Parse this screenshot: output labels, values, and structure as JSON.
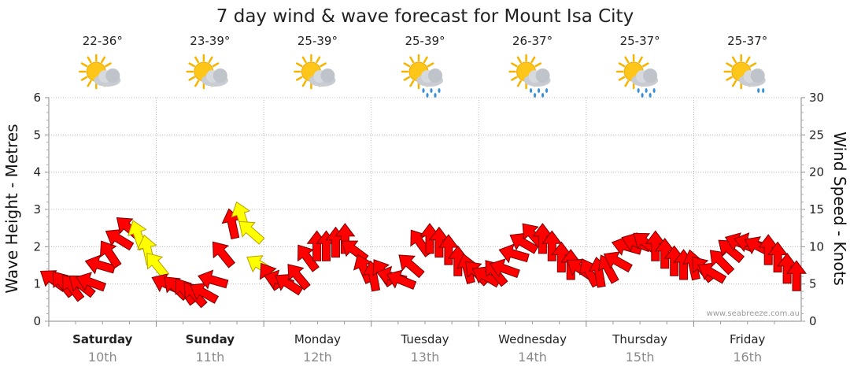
{
  "chart_data": {
    "type": "line",
    "title": "7 day wind & wave forecast for Mount Isa City",
    "ylabel_left": "Wave Height - Metres",
    "ylabel_right": "Wind Speed - Knots",
    "ylim_left": [
      0,
      6
    ],
    "ylim_right": [
      0,
      30
    ],
    "yticks_left": [
      "0",
      "1",
      "2",
      "3",
      "4",
      "5",
      "6"
    ],
    "yticks_right": [
      "0",
      "5",
      "10",
      "15",
      "20",
      "25",
      "30"
    ],
    "credit": "www.seabreeze.com.au",
    "days": [
      {
        "name": "Saturday",
        "date": "10th",
        "temp": "22-36°",
        "weather": "partly-cloudy",
        "bold": true
      },
      {
        "name": "Sunday",
        "date": "11th",
        "temp": "23-39°",
        "weather": "partly-cloudy",
        "bold": true
      },
      {
        "name": "Monday",
        "date": "12th",
        "temp": "25-39°",
        "weather": "partly-cloudy",
        "bold": false
      },
      {
        "name": "Tuesday",
        "date": "13th",
        "temp": "25-39°",
        "weather": "showers",
        "bold": false
      },
      {
        "name": "Wednesday",
        "date": "14th",
        "temp": "26-37°",
        "weather": "showers",
        "bold": false
      },
      {
        "name": "Thursday",
        "date": "15th",
        "temp": "25-37°",
        "weather": "showers",
        "bold": false
      },
      {
        "name": "Friday",
        "date": "16th",
        "temp": "25-37°",
        "weather": "light-showers",
        "bold": false
      }
    ],
    "series": [
      {
        "name": "Wind Speed (knots)",
        "values": [
          5.5,
          5.0,
          4.5,
          4.8,
          5.2,
          7.5,
          9.0,
          11.0,
          12.5,
          11.5,
          9.5,
          7.5,
          5.0,
          4.5,
          4.0,
          3.6,
          3.8,
          5.5,
          9.0,
          13.0,
          14.0,
          12.0,
          7.5,
          6.0,
          5.5,
          5.0,
          6.0,
          8.5,
          10.0,
          10.0,
          10.5,
          11.0,
          9.5,
          7.0,
          6.0,
          6.5,
          6.0,
          5.5,
          7.5,
          10.5,
          11.0,
          10.5,
          9.5,
          8.0,
          7.0,
          6.5,
          6.0,
          6.5,
          7.0,
          9.0,
          10.5,
          11.5,
          11.0,
          10.0,
          8.5,
          7.5,
          7.0,
          6.5,
          6.5,
          7.0,
          8.0,
          10.0,
          10.5,
          10.5,
          10.0,
          9.0,
          8.0,
          7.5,
          7.5,
          7.0,
          6.5,
          8.0,
          9.5,
          10.5,
          10.5,
          10.0,
          9.5,
          8.5,
          7.0,
          6.0
        ],
        "directions": "easterly"
      }
    ],
    "gust_highlights": [
      "Saturday afternoon",
      "Sunday afternoon"
    ]
  }
}
